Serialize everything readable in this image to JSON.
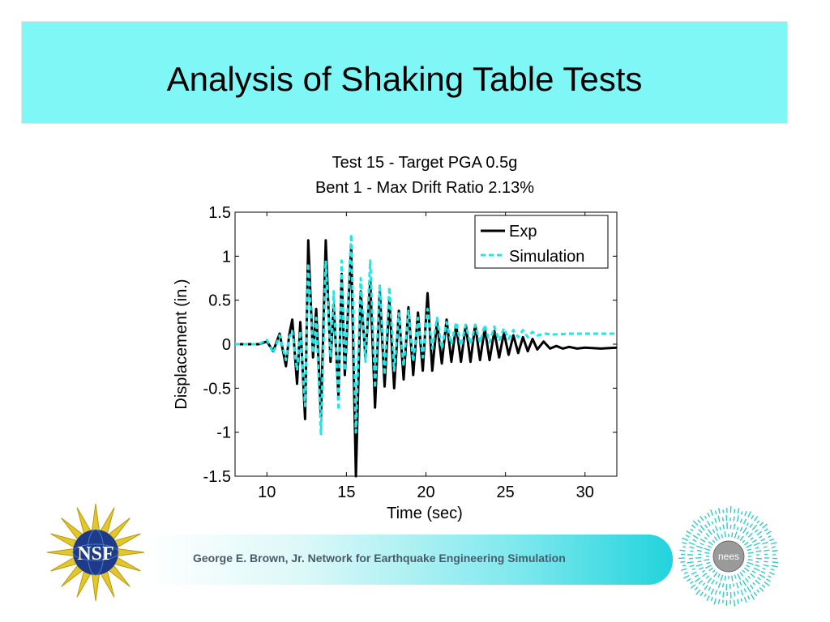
{
  "slide": {
    "title": "Analysis of Shaking Table Tests",
    "title_bg": "#7ff7f7"
  },
  "chart_data": {
    "type": "line",
    "title": [
      "Test 15 - Target PGA 0.5g",
      "Bent 1 - Max Drift Ratio 2.13%"
    ],
    "xlabel": "Time (sec)",
    "ylabel": "Displacement (in.)",
    "xlim": [
      8,
      32
    ],
    "ylim": [
      -1.5,
      1.5
    ],
    "xticks": [
      10,
      15,
      20,
      25,
      30
    ],
    "yticks": [
      1.5,
      1,
      0.5,
      0,
      -0.5,
      -1,
      -1.5
    ],
    "ytick_labels": [
      "1.5",
      "1",
      "0.5",
      "0",
      "-0.5",
      "-1",
      "-1.5"
    ],
    "legend_position": "top-right",
    "series": [
      {
        "name": "Exp",
        "color": "#000000",
        "style": "solid",
        "points": [
          [
            8,
            0
          ],
          [
            9.5,
            0
          ],
          [
            10,
            0.03
          ],
          [
            10.4,
            -0.08
          ],
          [
            10.8,
            0.12
          ],
          [
            11.2,
            -0.25
          ],
          [
            11.4,
            0.1
          ],
          [
            11.6,
            0.28
          ],
          [
            11.9,
            -0.45
          ],
          [
            12.1,
            0.25
          ],
          [
            12.4,
            -0.85
          ],
          [
            12.6,
            1.18
          ],
          [
            12.9,
            -0.15
          ],
          [
            13.1,
            0.4
          ],
          [
            13.4,
            -0.82
          ],
          [
            13.7,
            1.18
          ],
          [
            14,
            -0.2
          ],
          [
            14.2,
            0.45
          ],
          [
            14.5,
            -0.6
          ],
          [
            14.7,
            0.8
          ],
          [
            14.9,
            -0.35
          ],
          [
            15.3,
            1.1
          ],
          [
            15.6,
            -1.5
          ],
          [
            15.9,
            0.6
          ],
          [
            16.2,
            -0.15
          ],
          [
            16.5,
            0.72
          ],
          [
            16.8,
            -0.72
          ],
          [
            17.1,
            0.6
          ],
          [
            17.4,
            -0.48
          ],
          [
            17.7,
            0.5
          ],
          [
            18,
            -0.5
          ],
          [
            18.3,
            0.38
          ],
          [
            18.6,
            -0.4
          ],
          [
            18.9,
            0.42
          ],
          [
            19.2,
            -0.35
          ],
          [
            19.5,
            0.36
          ],
          [
            19.8,
            -0.3
          ],
          [
            20.1,
            0.58
          ],
          [
            20.4,
            -0.3
          ],
          [
            20.7,
            0.26
          ],
          [
            21,
            -0.22
          ],
          [
            21.3,
            0.28
          ],
          [
            21.6,
            -0.2
          ],
          [
            21.9,
            0.22
          ],
          [
            22.2,
            -0.2
          ],
          [
            22.5,
            0.22
          ],
          [
            22.8,
            -0.2
          ],
          [
            23.1,
            0.22
          ],
          [
            23.4,
            -0.18
          ],
          [
            23.7,
            0.18
          ],
          [
            24,
            -0.18
          ],
          [
            24.3,
            0.15
          ],
          [
            24.6,
            -0.15
          ],
          [
            24.9,
            0.13
          ],
          [
            25.2,
            -0.12
          ],
          [
            25.5,
            0.1
          ],
          [
            25.8,
            -0.1
          ],
          [
            26.1,
            0.08
          ],
          [
            26.4,
            -0.08
          ],
          [
            26.7,
            0.06
          ],
          [
            27,
            -0.06
          ],
          [
            27.4,
            0.03
          ],
          [
            27.8,
            -0.05
          ],
          [
            28.2,
            -0.02
          ],
          [
            28.6,
            -0.05
          ],
          [
            29,
            -0.03
          ],
          [
            29.5,
            -0.05
          ],
          [
            30,
            -0.04
          ],
          [
            31,
            -0.05
          ],
          [
            32,
            -0.04
          ]
        ]
      },
      {
        "name": "Simulation",
        "color": "#22e5e5",
        "style": "dashed",
        "points": [
          [
            8,
            0
          ],
          [
            9.5,
            0
          ],
          [
            10,
            0.05
          ],
          [
            10.4,
            -0.1
          ],
          [
            10.8,
            0.1
          ],
          [
            11.2,
            -0.18
          ],
          [
            11.4,
            0.08
          ],
          [
            11.6,
            0.15
          ],
          [
            11.9,
            -0.3
          ],
          [
            12.1,
            0.15
          ],
          [
            12.4,
            -0.7
          ],
          [
            12.6,
            0.92
          ],
          [
            12.9,
            -0.1
          ],
          [
            13.1,
            0.3
          ],
          [
            13.4,
            -1.02
          ],
          [
            13.7,
            0.95
          ],
          [
            14,
            -0.15
          ],
          [
            14.2,
            0.6
          ],
          [
            14.5,
            -0.75
          ],
          [
            14.7,
            0.95
          ],
          [
            14.9,
            -0.3
          ],
          [
            15.3,
            1.25
          ],
          [
            15.6,
            -1
          ],
          [
            15.9,
            0.75
          ],
          [
            16.2,
            -0.2
          ],
          [
            16.5,
            0.95
          ],
          [
            16.8,
            -0.5
          ],
          [
            17.1,
            0.68
          ],
          [
            17.4,
            -0.35
          ],
          [
            17.7,
            0.65
          ],
          [
            18,
            -0.3
          ],
          [
            18.3,
            0.35
          ],
          [
            18.6,
            -0.25
          ],
          [
            18.9,
            0.38
          ],
          [
            19.2,
            -0.2
          ],
          [
            19.5,
            0.3
          ],
          [
            19.8,
            -0.15
          ],
          [
            20.1,
            0.4
          ],
          [
            20.4,
            -0.05
          ],
          [
            20.7,
            0.3
          ],
          [
            21,
            -0.05
          ],
          [
            21.3,
            0.25
          ],
          [
            21.6,
            0
          ],
          [
            21.9,
            0.25
          ],
          [
            22.2,
            -0.02
          ],
          [
            22.5,
            0.22
          ],
          [
            22.8,
            0
          ],
          [
            23.1,
            0.22
          ],
          [
            23.4,
            0.02
          ],
          [
            23.7,
            0.22
          ],
          [
            24,
            0.02
          ],
          [
            24.3,
            0.2
          ],
          [
            24.6,
            0.04
          ],
          [
            24.9,
            0.18
          ],
          [
            25.2,
            0.06
          ],
          [
            25.5,
            0.16
          ],
          [
            25.8,
            0.08
          ],
          [
            26.1,
            0.16
          ],
          [
            26.4,
            0.08
          ],
          [
            26.7,
            0.14
          ],
          [
            27,
            0.1
          ],
          [
            27.5,
            0.12
          ],
          [
            28,
            0.11
          ],
          [
            29,
            0.12
          ],
          [
            30,
            0.12
          ],
          [
            32,
            0.12
          ]
        ]
      }
    ]
  },
  "footer": {
    "text": "George E. Brown, Jr. Network for Earthquake Engineering Simulation"
  },
  "logos": {
    "nsf_text": "NSF",
    "nees_text": "nees"
  }
}
